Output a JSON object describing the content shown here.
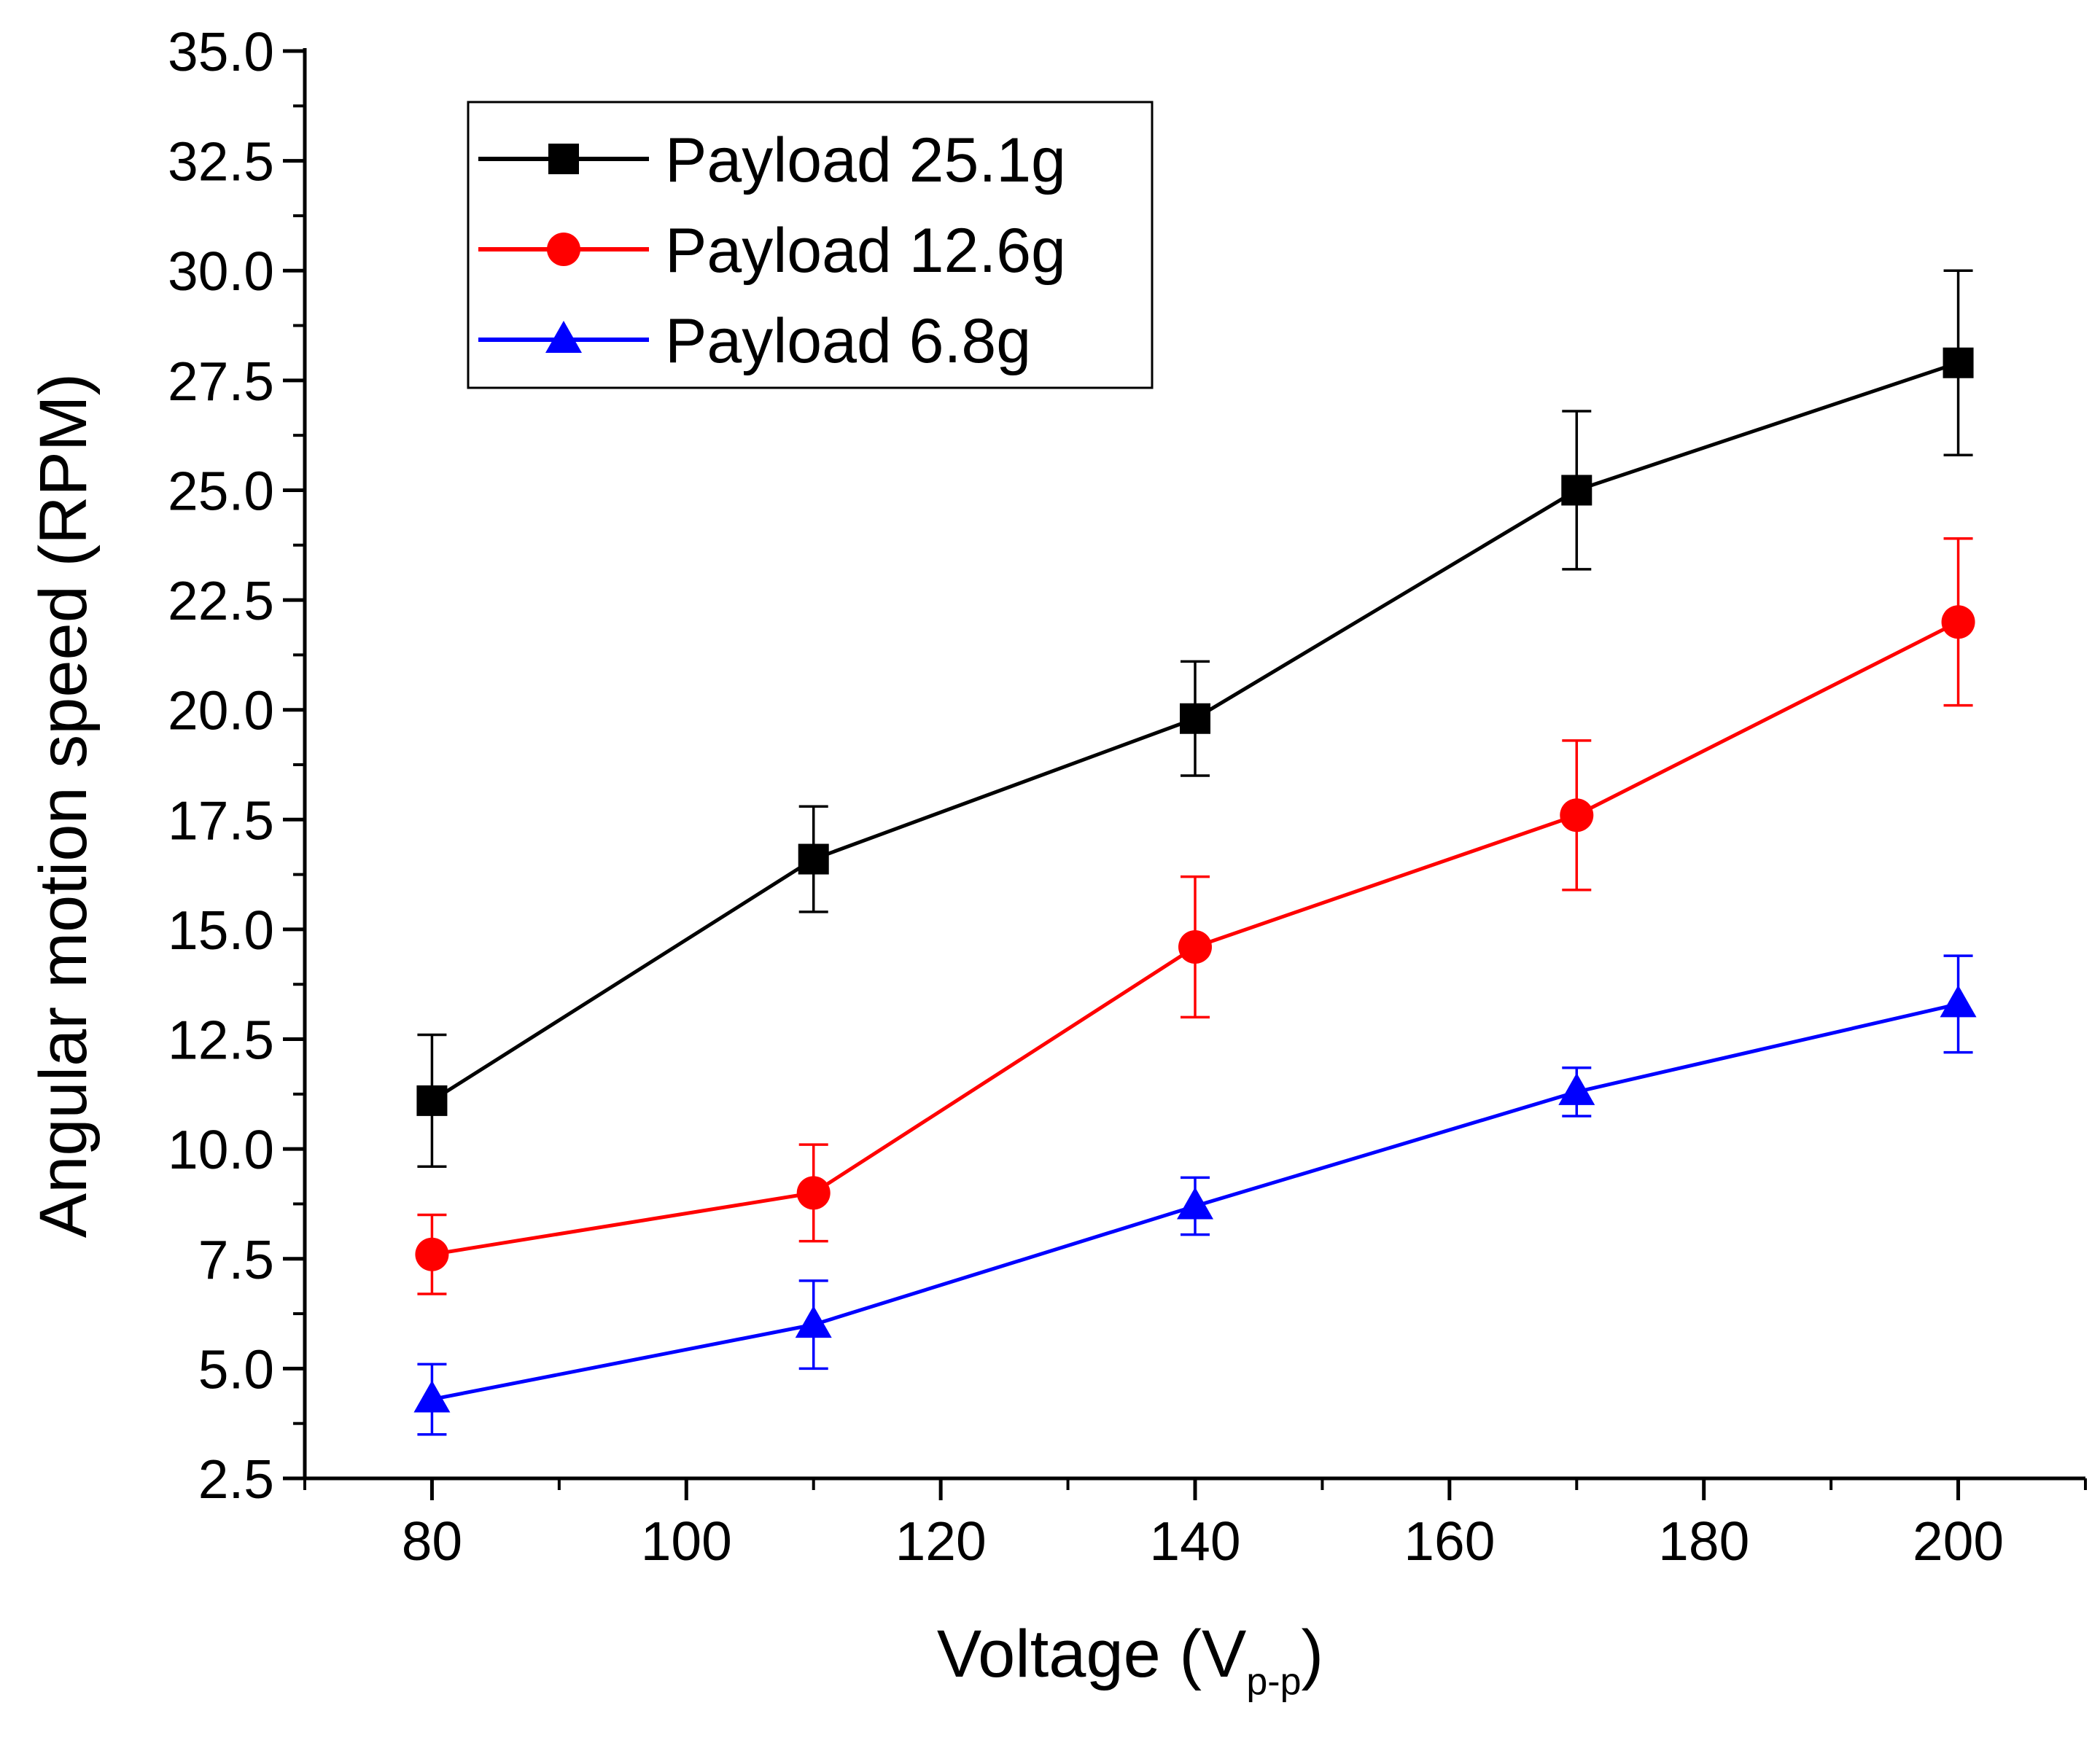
{
  "chart_data": {
    "type": "line",
    "title": "",
    "xlabel": "Voltage (V",
    "xlabel_subscript": "p-p",
    "xlabel_close": ")",
    "ylabel": "Angular motion speed (RPM)",
    "xlim": [
      70,
      210
    ],
    "ylim": [
      2.5,
      35.0
    ],
    "x_ticks": [
      80,
      100,
      120,
      140,
      160,
      180,
      200
    ],
    "x_tick_labels": [
      "80",
      "100",
      "120",
      "140",
      "160",
      "180",
      "200"
    ],
    "y_ticks": [
      2.5,
      5.0,
      7.5,
      10.0,
      12.5,
      15.0,
      17.5,
      20.0,
      22.5,
      25.0,
      27.5,
      30.0,
      32.5,
      35.0
    ],
    "y_tick_labels": [
      "2.5",
      "5.0",
      "7.5",
      "10.0",
      "12.5",
      "15.0",
      "17.5",
      "20.0",
      "22.5",
      "25.0",
      "27.5",
      "30.0",
      "32.5",
      "35.0"
    ],
    "grid": false,
    "legend_position": "top-left",
    "x": [
      80,
      110,
      140,
      170,
      200
    ],
    "series": [
      {
        "name": "Payload 25.1g",
        "color": "#000000",
        "marker": "square",
        "values": [
          11.1,
          16.6,
          19.8,
          25.0,
          27.9
        ],
        "error": [
          1.5,
          1.2,
          1.3,
          1.8,
          2.1
        ]
      },
      {
        "name": "Payload 12.6g",
        "color": "#ff0000",
        "marker": "circle",
        "values": [
          7.6,
          9.0,
          14.6,
          17.6,
          22.0
        ],
        "error": [
          0.9,
          1.1,
          1.6,
          1.7,
          1.9
        ]
      },
      {
        "name": "Payload 6.8g",
        "color": "#0000ff",
        "marker": "triangle",
        "values": [
          4.3,
          6.0,
          8.7,
          11.3,
          13.3
        ],
        "error": [
          0.8,
          1.0,
          0.65,
          0.55,
          1.1
        ]
      }
    ]
  }
}
